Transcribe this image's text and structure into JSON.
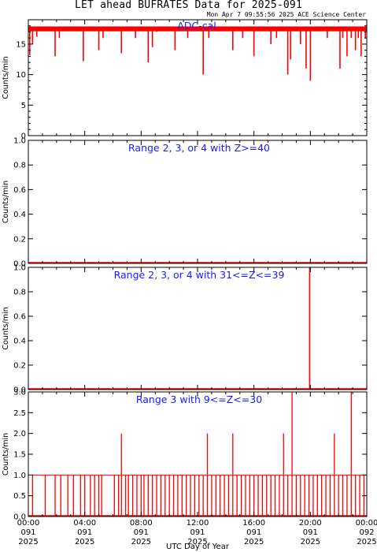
{
  "header": {
    "title": "LET ahead BUFRATES Data for 2025-091",
    "timestamp": "Mon Apr  7 09:55:56 2025 ACE Science Center"
  },
  "colors": {
    "data": "#ff0000",
    "title": "#1a1aff",
    "axis": "#000000"
  },
  "chart_data": [
    {
      "type": "line",
      "title": "ADC-cal",
      "ylabel": "Counts/min",
      "ylim": [
        0,
        19
      ],
      "yticks": [
        0,
        5,
        10,
        15
      ],
      "ytick_labels": [
        "0",
        "5",
        "10",
        "15"
      ],
      "x_hours": [
        0,
        0.1,
        0.3,
        0.6,
        1.6,
        1.9,
        2.2,
        3.6,
        3.9,
        5.0,
        5.3,
        6.4,
        6.6,
        7.6,
        7.9,
        8.5,
        8.8,
        9.1,
        9.6,
        10.4,
        11.3,
        12.0,
        12.4,
        12.8,
        14.2,
        14.5,
        15.2,
        16.0,
        16.5,
        17.2,
        17.6,
        18.4,
        18.6,
        19.3,
        19.7,
        20.0,
        20.7,
        21.2,
        21.6,
        22.1,
        22.3,
        22.6,
        22.9,
        23.2,
        23.4,
        23.6,
        23.9
      ],
      "values": [
        17.5,
        13.2,
        15.0,
        16.2,
        17.5,
        13.0,
        16.0,
        17.5,
        12.2,
        14.0,
        16.0,
        17.5,
        13.5,
        16.0,
        17.5,
        12.0,
        14.5,
        17.0,
        17.5,
        14.0,
        16.0,
        17.5,
        10.0,
        16.0,
        17.5,
        14.0,
        16.0,
        13.0,
        17.5,
        15.0,
        16.0,
        10.0,
        12.5,
        15.0,
        11.0,
        9.0,
        17.5,
        16.0,
        17.5,
        11.0,
        16.0,
        13.0,
        16.0,
        14.0,
        16.0,
        13.0,
        16.0
      ]
    },
    {
      "type": "line",
      "title": "Range 2, 3, or 4 with Z>=40",
      "ylabel": "Counts/min",
      "ylim": [
        0,
        1
      ],
      "yticks": [
        0,
        0.2,
        0.4,
        0.6,
        0.8,
        1.0
      ],
      "ytick_labels": [
        "0.0",
        "0.2",
        "0.4",
        "0.6",
        "0.8",
        "1.0"
      ],
      "x_hours": [
        0,
        24
      ],
      "values": [
        0,
        0
      ]
    },
    {
      "type": "line",
      "title": "Range 2, 3, or 4 with 31<=Z<=39",
      "ylabel": "Counts/min",
      "ylim": [
        0,
        1
      ],
      "yticks": [
        0,
        0.2,
        0.4,
        0.6,
        0.8,
        1.0
      ],
      "ytick_labels": [
        "0.0",
        "0.2",
        "0.4",
        "0.6",
        "0.8",
        "1.0"
      ],
      "x_hours": [
        19.95
      ],
      "values": [
        1
      ]
    },
    {
      "type": "line",
      "title": "Range 3 with 9<=Z<=30",
      "ylabel": "Counts/min",
      "ylim": [
        0,
        3
      ],
      "yticks": [
        0,
        0.5,
        1.0,
        1.5,
        2.0,
        2.5,
        3.0
      ],
      "ytick_labels": [
        "0.0",
        "0.5",
        "1.0",
        "1.5",
        "2.0",
        "2.5",
        "3.0"
      ],
      "x_hours": [
        0.3,
        1.2,
        1.9,
        2.3,
        2.8,
        3.2,
        3.7,
        4.0,
        4.4,
        4.7,
        5.0,
        5.2,
        6.1,
        6.4,
        6.6,
        6.9,
        7.1,
        7.4,
        7.7,
        8.0,
        8.2,
        8.5,
        8.8,
        9.1,
        9.4,
        9.7,
        10.0,
        10.3,
        10.6,
        10.9,
        11.2,
        11.5,
        11.8,
        12.1,
        12.4,
        12.7,
        13.0,
        13.3,
        13.6,
        13.9,
        14.2,
        14.5,
        14.8,
        15.1,
        15.4,
        15.7,
        16.0,
        16.3,
        16.6,
        16.9,
        17.2,
        17.5,
        17.8,
        18.1,
        18.4,
        18.7,
        19.0,
        19.3,
        19.6,
        19.9,
        20.2,
        20.5,
        20.8,
        21.1,
        21.4,
        21.7,
        22.0,
        22.3,
        22.6,
        22.9,
        23.2,
        23.5,
        23.8
      ],
      "values": [
        1,
        1,
        1,
        1,
        1,
        1,
        1,
        1,
        1,
        1,
        1,
        1,
        1,
        1,
        2,
        1,
        1,
        1,
        1,
        1,
        1,
        1,
        1,
        1,
        1,
        1,
        1,
        1,
        1,
        1,
        1,
        1,
        1,
        1,
        1,
        2,
        1,
        1,
        1,
        1,
        1,
        2,
        1,
        1,
        1,
        1,
        1,
        1,
        1,
        1,
        1,
        1,
        1,
        2,
        1,
        3,
        1,
        1,
        1,
        1,
        1,
        1,
        1,
        1,
        1,
        2,
        1,
        1,
        1,
        3,
        1,
        1,
        1
      ]
    }
  ],
  "xaxis": {
    "label": "UTC Day of Year",
    "xlim": [
      0,
      24
    ],
    "ticks": [
      {
        "hour": 0,
        "time": "00:00",
        "doy": "091",
        "year": "2025"
      },
      {
        "hour": 4,
        "time": "04:00",
        "doy": "091",
        "year": "2025"
      },
      {
        "hour": 8,
        "time": "08:00",
        "doy": "091",
        "year": "2025"
      },
      {
        "hour": 12,
        "time": "12:00",
        "doy": "091",
        "year": "2025"
      },
      {
        "hour": 16,
        "time": "16:00",
        "doy": "091",
        "year": "2025"
      },
      {
        "hour": 20,
        "time": "20:00",
        "doy": "091",
        "year": "2025"
      },
      {
        "hour": 24,
        "time": "00:00",
        "doy": "092",
        "year": "2025"
      }
    ]
  }
}
